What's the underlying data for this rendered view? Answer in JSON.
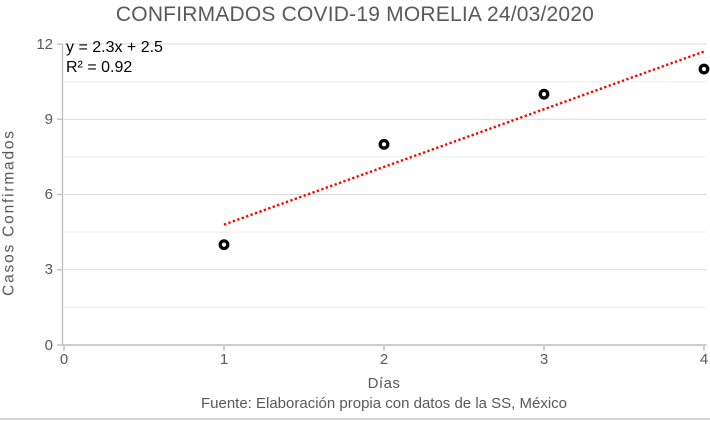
{
  "chart_data": {
    "type": "scatter",
    "title": "CONFIRMADOS COVID-19 MORELIA 24/03/2020",
    "xlabel": "Días",
    "ylabel": "Casos Confirmados",
    "source": "Fuente: Elaboración propia con datos de la SS, México",
    "points": [
      {
        "x": 1,
        "y": 4
      },
      {
        "x": 2,
        "y": 8
      },
      {
        "x": 3,
        "y": 10
      },
      {
        "x": 4,
        "y": 11
      }
    ],
    "xlim": [
      0,
      4
    ],
    "ylim": [
      0,
      12
    ],
    "x_ticks": [
      0,
      1,
      2,
      3,
      4
    ],
    "y_ticks": [
      0,
      3,
      6,
      9,
      12
    ],
    "y_minor_ticks": [
      1.5,
      4.5,
      7.5,
      10.5
    ],
    "grid": "horizontal-only",
    "legend": "none",
    "trendline": {
      "type": "linear",
      "slope": 2.3,
      "intercept": 2.5,
      "r2": 0.92,
      "x_start": 1,
      "x_end": 4,
      "equation_label": "y = 2.3x + 2.5",
      "r2_label": "R² = 0.92",
      "style": "dotted",
      "color": "#ff0000"
    },
    "marker": {
      "shape": "ring",
      "stroke": "#000000",
      "fill": "#ffffff"
    },
    "colors": {
      "title_text": "#595959",
      "axis_text": "#595959",
      "equation_text": "#000000",
      "major_gridline": "#d9d9d9",
      "minor_gridline": "#ededed",
      "axis_line": "#bdbdbd",
      "trendline": "#ff0000",
      "marker": "#000000",
      "bottom_border": "#d4d4dc"
    }
  }
}
